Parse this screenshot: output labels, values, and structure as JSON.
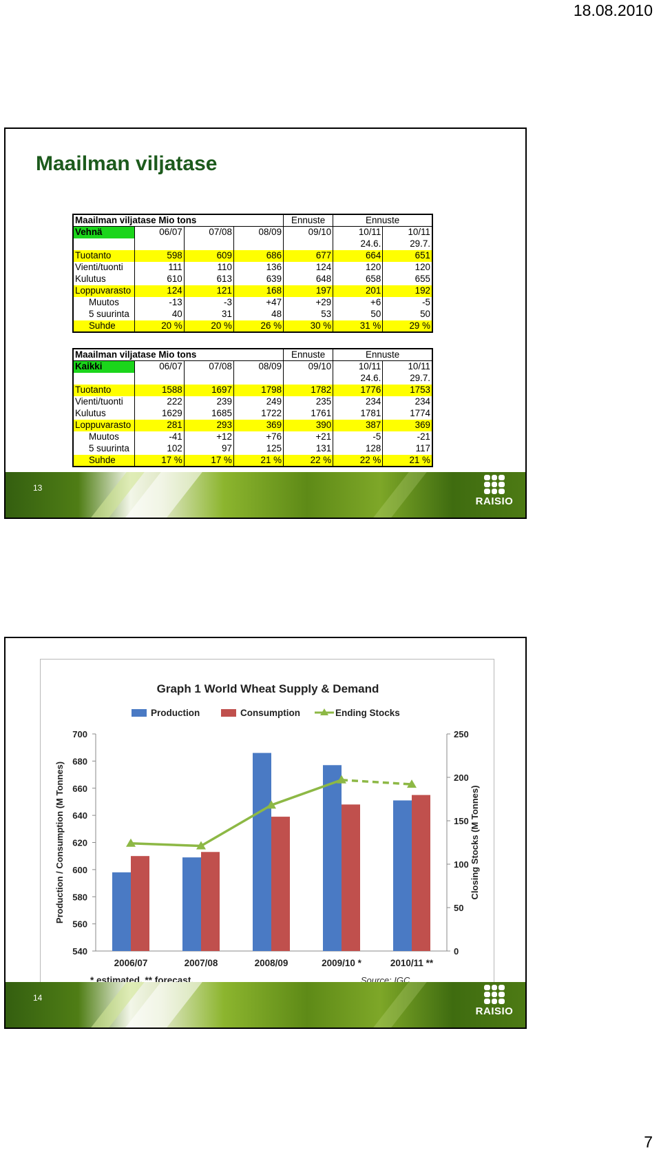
{
  "page": {
    "date": "18.08.2010",
    "number": "7"
  },
  "slide1": {
    "title": "Maailman viljatase",
    "number": "13",
    "logo": "RAISIO",
    "table_wheat": {
      "title": "Maailman viljatase Mio tons",
      "ennuste1": "Ennuste",
      "ennuste2": "Ennuste",
      "label": "Vehnä",
      "periods": [
        "06/07",
        "07/08",
        "08/09",
        "09/10",
        "10/11",
        "10/11"
      ],
      "period_subs": [
        "",
        "",
        "",
        "",
        "24.6.",
        "29.7."
      ],
      "rows": [
        {
          "label": "Tuotanto",
          "values": [
            "598",
            "609",
            "686",
            "677",
            "664",
            "651"
          ],
          "highlight": true,
          "indent": false
        },
        {
          "label": "Vienti/tuonti",
          "values": [
            "111",
            "110",
            "136",
            "124",
            "120",
            "120"
          ],
          "highlight": false,
          "indent": false
        },
        {
          "label": "Kulutus",
          "values": [
            "610",
            "613",
            "639",
            "648",
            "658",
            "655"
          ],
          "highlight": false,
          "indent": false
        },
        {
          "label": "Loppuvarasto",
          "values": [
            "124",
            "121",
            "168",
            "197",
            "201",
            "192"
          ],
          "highlight": true,
          "indent": false
        },
        {
          "label": "Muutos",
          "values": [
            "-13",
            "-3",
            "+47",
            "+29",
            "+6",
            "-5"
          ],
          "highlight": false,
          "indent": true
        },
        {
          "label": "5 suurinta",
          "values": [
            "40",
            "31",
            "48",
            "53",
            "50",
            "50"
          ],
          "highlight": false,
          "indent": true
        },
        {
          "label": "Suhde",
          "values": [
            "20 %",
            "20 %",
            "26 %",
            "30 %",
            "31 %",
            "29 %"
          ],
          "highlight": true,
          "indent": true
        }
      ]
    },
    "table_all": {
      "title": "Maailman viljatase Mio tons",
      "ennuste1": "Ennuste",
      "ennuste2": "Ennuste",
      "label": "Kaikki",
      "periods": [
        "06/07",
        "07/08",
        "08/09",
        "09/10",
        "10/11",
        "10/11"
      ],
      "period_subs": [
        "",
        "",
        "",
        "",
        "24.6.",
        "29.7."
      ],
      "rows": [
        {
          "label": "Tuotanto",
          "values": [
            "1588",
            "1697",
            "1798",
            "1782",
            "1776",
            "1753"
          ],
          "highlight": true,
          "indent": false
        },
        {
          "label": "Vienti/tuonti",
          "values": [
            "222",
            "239",
            "249",
            "235",
            "234",
            "234"
          ],
          "highlight": false,
          "indent": false
        },
        {
          "label": "Kulutus",
          "values": [
            "1629",
            "1685",
            "1722",
            "1761",
            "1781",
            "1774"
          ],
          "highlight": false,
          "indent": false
        },
        {
          "label": "Loppuvarasto",
          "values": [
            "281",
            "293",
            "369",
            "390",
            "387",
            "369"
          ],
          "highlight": true,
          "indent": false
        },
        {
          "label": "Muutos",
          "values": [
            "-41",
            "+12",
            "+76",
            "+21",
            "-5",
            "-21"
          ],
          "highlight": false,
          "indent": true
        },
        {
          "label": "5 suurinta",
          "values": [
            "102",
            "97",
            "125",
            "131",
            "128",
            "117"
          ],
          "highlight": false,
          "indent": true
        },
        {
          "label": "Suhde",
          "values": [
            "17 %",
            "17 %",
            "21 %",
            "22 %",
            "22 %",
            "21 %"
          ],
          "highlight": true,
          "indent": true
        }
      ]
    }
  },
  "slide2": {
    "number": "14",
    "logo": "RAISIO"
  },
  "chart_data": {
    "type": "bar",
    "title": "Graph 1   World Wheat Supply & Demand",
    "categories": [
      "2006/07",
      "2007/08",
      "2008/09",
      "2009/10 *",
      "2010/11 **"
    ],
    "series": [
      {
        "name": "Production",
        "type": "bar",
        "axis": "left",
        "color": "#4a7ac4",
        "values": [
          598,
          609,
          686,
          677,
          651
        ]
      },
      {
        "name": "Consumption",
        "type": "bar",
        "axis": "left",
        "color": "#c0504d",
        "values": [
          610,
          613,
          639,
          648,
          655
        ]
      },
      {
        "name": "Ending Stocks",
        "type": "line",
        "axis": "right",
        "color": "#8db845",
        "values": [
          124,
          121,
          168,
          197,
          192
        ],
        "dashed_from_index": 3
      }
    ],
    "ylabel": "Production / Consumption (M Tonnes)",
    "y2label": "Closing Stocks (M Tonnes)",
    "ylim": [
      540,
      700
    ],
    "y2lim": [
      0,
      250
    ],
    "yticks": [
      "540",
      "560",
      "580",
      "600",
      "620",
      "640",
      "660",
      "680",
      "700"
    ],
    "y2ticks": [
      "0",
      "50",
      "100",
      "150",
      "200",
      "250"
    ],
    "legend_position": "top",
    "grid": false,
    "footnote": "* estimated, ** forecast.",
    "source": "Source: IGC."
  }
}
